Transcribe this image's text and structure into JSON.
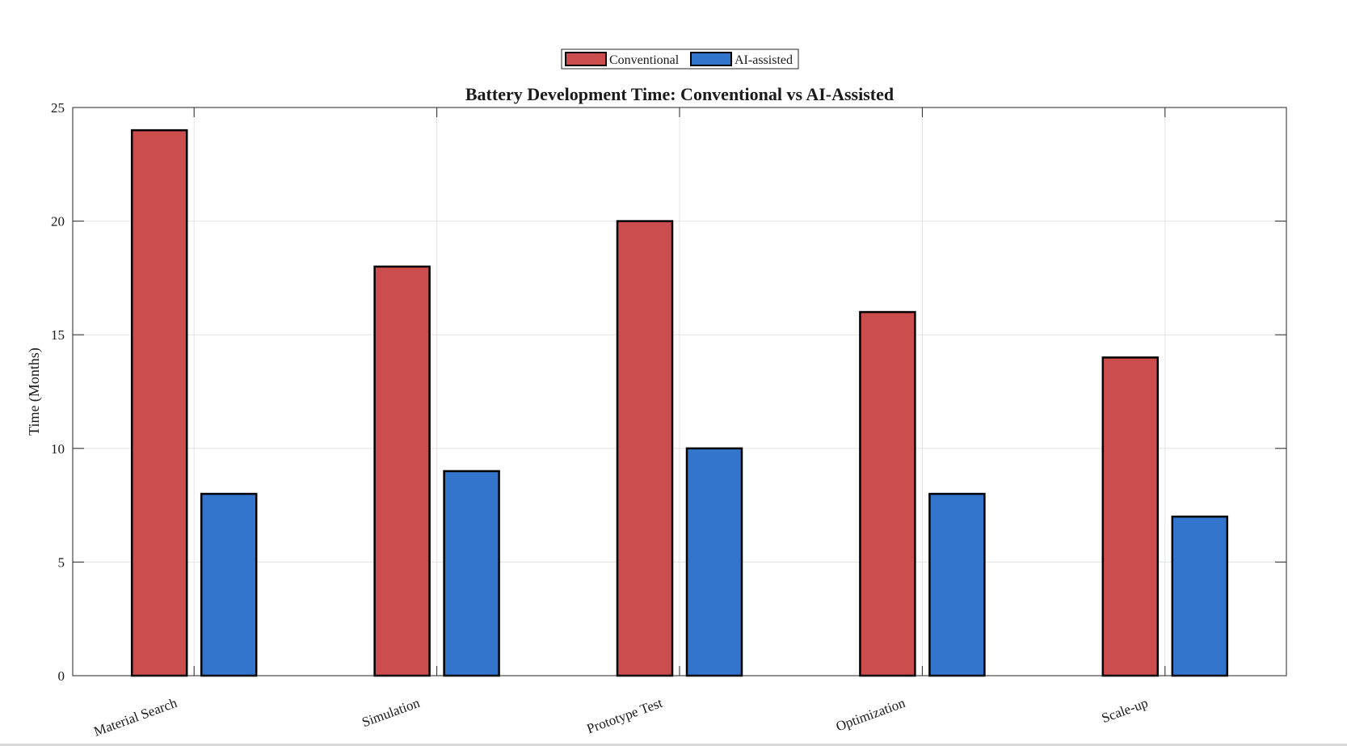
{
  "chart_data": {
    "type": "bar",
    "title": "Battery Development Time: Conventional vs AI-Assisted",
    "xlabel": "",
    "ylabel": "Time (Months)",
    "categories": [
      "Material Search",
      "Simulation",
      "Prototype Test",
      "Optimization",
      "Scale-up"
    ],
    "series": [
      {
        "name": "Conventional",
        "values": [
          24,
          18,
          20,
          16,
          14
        ],
        "color": "#cc4d4d"
      },
      {
        "name": "AI-assisted",
        "values": [
          8,
          9,
          10,
          8,
          7
        ],
        "color": "#3375cc"
      }
    ],
    "ylim": [
      0,
      25
    ],
    "yticks": [
      0,
      5,
      10,
      15,
      20,
      25
    ],
    "grid": true,
    "legend_position": "top-center"
  }
}
